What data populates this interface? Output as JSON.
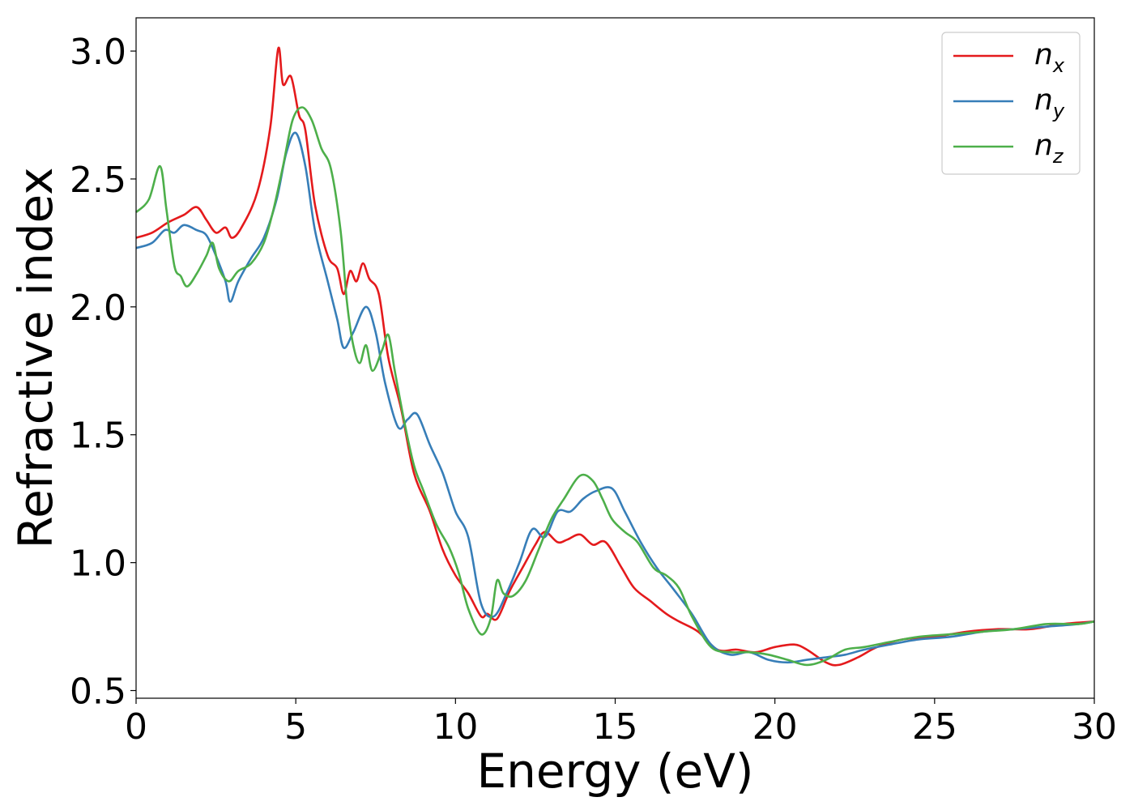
{
  "chart_data": {
    "type": "line",
    "xlabel": "Energy (eV)",
    "ylabel": "Refractive index",
    "xlim": [
      0,
      30
    ],
    "ylim": [
      0.47,
      3.13
    ],
    "xticks": [
      0,
      5,
      10,
      15,
      20,
      25,
      30
    ],
    "yticks": [
      0.5,
      1.0,
      1.5,
      2.0,
      2.5,
      3.0
    ],
    "xtick_labels": [
      "0",
      "5",
      "10",
      "15",
      "20",
      "25",
      "30"
    ],
    "ytick_labels": [
      "0.5",
      "1.0",
      "1.5",
      "2.0",
      "2.5",
      "3.0"
    ],
    "grid": false,
    "legend_position": "top-right",
    "series": [
      {
        "name": "n_x",
        "label_base": "n",
        "label_sub": "x",
        "color": "#e41a1c",
        "points": [
          [
            0,
            2.27
          ],
          [
            0.5,
            2.29
          ],
          [
            1.0,
            2.33
          ],
          [
            1.5,
            2.36
          ],
          [
            1.9,
            2.39
          ],
          [
            2.2,
            2.34
          ],
          [
            2.5,
            2.29
          ],
          [
            2.8,
            2.31
          ],
          [
            3.0,
            2.27
          ],
          [
            3.3,
            2.31
          ],
          [
            3.8,
            2.45
          ],
          [
            4.2,
            2.7
          ],
          [
            4.45,
            3.01
          ],
          [
            4.6,
            2.87
          ],
          [
            4.85,
            2.9
          ],
          [
            5.1,
            2.75
          ],
          [
            5.3,
            2.69
          ],
          [
            5.6,
            2.4
          ],
          [
            6.0,
            2.2
          ],
          [
            6.3,
            2.15
          ],
          [
            6.5,
            2.05
          ],
          [
            6.7,
            2.14
          ],
          [
            6.9,
            2.1
          ],
          [
            7.1,
            2.17
          ],
          [
            7.3,
            2.11
          ],
          [
            7.6,
            2.05
          ],
          [
            7.9,
            1.8
          ],
          [
            8.3,
            1.6
          ],
          [
            8.7,
            1.35
          ],
          [
            9.2,
            1.2
          ],
          [
            9.6,
            1.05
          ],
          [
            10.0,
            0.95
          ],
          [
            10.4,
            0.88
          ],
          [
            10.8,
            0.79
          ],
          [
            11.0,
            0.8
          ],
          [
            11.3,
            0.78
          ],
          [
            11.7,
            0.89
          ],
          [
            12.1,
            0.98
          ],
          [
            12.5,
            1.07
          ],
          [
            12.8,
            1.12
          ],
          [
            13.2,
            1.08
          ],
          [
            13.5,
            1.09
          ],
          [
            13.9,
            1.11
          ],
          [
            14.3,
            1.07
          ],
          [
            14.7,
            1.08
          ],
          [
            15.2,
            0.98
          ],
          [
            15.6,
            0.9
          ],
          [
            16.1,
            0.85
          ],
          [
            16.6,
            0.8
          ],
          [
            17.0,
            0.77
          ],
          [
            17.6,
            0.73
          ],
          [
            18.2,
            0.66
          ],
          [
            18.8,
            0.66
          ],
          [
            19.4,
            0.65
          ],
          [
            20.0,
            0.67
          ],
          [
            20.6,
            0.68
          ],
          [
            21.0,
            0.66
          ],
          [
            21.6,
            0.61
          ],
          [
            22.0,
            0.6
          ],
          [
            22.6,
            0.63
          ],
          [
            23.2,
            0.67
          ],
          [
            24.0,
            0.7
          ],
          [
            25.0,
            0.71
          ],
          [
            26.0,
            0.73
          ],
          [
            27.0,
            0.74
          ],
          [
            28.0,
            0.74
          ],
          [
            29.0,
            0.76
          ],
          [
            30.0,
            0.77
          ]
        ]
      },
      {
        "name": "n_y",
        "label_base": "n",
        "label_sub": "y",
        "color": "#377eb8",
        "points": [
          [
            0,
            2.23
          ],
          [
            0.5,
            2.25
          ],
          [
            0.9,
            2.3
          ],
          [
            1.2,
            2.29
          ],
          [
            1.5,
            2.32
          ],
          [
            1.9,
            2.3
          ],
          [
            2.2,
            2.28
          ],
          [
            2.5,
            2.2
          ],
          [
            2.8,
            2.1
          ],
          [
            2.95,
            2.02
          ],
          [
            3.2,
            2.1
          ],
          [
            3.6,
            2.19
          ],
          [
            4.0,
            2.27
          ],
          [
            4.4,
            2.42
          ],
          [
            4.7,
            2.6
          ],
          [
            5.0,
            2.68
          ],
          [
            5.3,
            2.55
          ],
          [
            5.6,
            2.3
          ],
          [
            6.0,
            2.1
          ],
          [
            6.3,
            1.95
          ],
          [
            6.5,
            1.84
          ],
          [
            6.8,
            1.9
          ],
          [
            7.2,
            2.0
          ],
          [
            7.5,
            1.9
          ],
          [
            7.8,
            1.7
          ],
          [
            8.2,
            1.53
          ],
          [
            8.5,
            1.56
          ],
          [
            8.8,
            1.58
          ],
          [
            9.2,
            1.46
          ],
          [
            9.6,
            1.35
          ],
          [
            10.0,
            1.2
          ],
          [
            10.4,
            1.1
          ],
          [
            10.8,
            0.84
          ],
          [
            11.2,
            0.79
          ],
          [
            11.6,
            0.88
          ],
          [
            12.0,
            1.0
          ],
          [
            12.4,
            1.13
          ],
          [
            12.8,
            1.1
          ],
          [
            13.2,
            1.2
          ],
          [
            13.6,
            1.2
          ],
          [
            14.0,
            1.25
          ],
          [
            14.4,
            1.28
          ],
          [
            14.9,
            1.29
          ],
          [
            15.3,
            1.2
          ],
          [
            15.8,
            1.08
          ],
          [
            16.3,
            0.98
          ],
          [
            16.8,
            0.9
          ],
          [
            17.4,
            0.8
          ],
          [
            18.0,
            0.68
          ],
          [
            18.6,
            0.64
          ],
          [
            19.2,
            0.65
          ],
          [
            19.8,
            0.62
          ],
          [
            20.4,
            0.61
          ],
          [
            21.0,
            0.62
          ],
          [
            21.6,
            0.63
          ],
          [
            22.2,
            0.64
          ],
          [
            22.8,
            0.66
          ],
          [
            23.6,
            0.68
          ],
          [
            24.5,
            0.7
          ],
          [
            25.5,
            0.71
          ],
          [
            26.5,
            0.73
          ],
          [
            27.5,
            0.74
          ],
          [
            28.5,
            0.75
          ],
          [
            29.5,
            0.76
          ],
          [
            30.0,
            0.77
          ]
        ]
      },
      {
        "name": "n_z",
        "label_base": "n",
        "label_sub": "z",
        "color": "#4daf4a",
        "points": [
          [
            0,
            2.37
          ],
          [
            0.4,
            2.42
          ],
          [
            0.75,
            2.55
          ],
          [
            0.95,
            2.38
          ],
          [
            1.2,
            2.16
          ],
          [
            1.4,
            2.12
          ],
          [
            1.6,
            2.08
          ],
          [
            1.9,
            2.13
          ],
          [
            2.2,
            2.2
          ],
          [
            2.4,
            2.25
          ],
          [
            2.6,
            2.15
          ],
          [
            2.9,
            2.1
          ],
          [
            3.2,
            2.14
          ],
          [
            3.6,
            2.17
          ],
          [
            4.0,
            2.25
          ],
          [
            4.3,
            2.38
          ],
          [
            4.6,
            2.55
          ],
          [
            4.9,
            2.73
          ],
          [
            5.2,
            2.78
          ],
          [
            5.5,
            2.73
          ],
          [
            5.8,
            2.62
          ],
          [
            6.1,
            2.54
          ],
          [
            6.4,
            2.3
          ],
          [
            6.6,
            2.02
          ],
          [
            6.8,
            1.85
          ],
          [
            7.0,
            1.78
          ],
          [
            7.2,
            1.85
          ],
          [
            7.4,
            1.75
          ],
          [
            7.7,
            1.83
          ],
          [
            7.9,
            1.89
          ],
          [
            8.1,
            1.75
          ],
          [
            8.4,
            1.55
          ],
          [
            8.7,
            1.38
          ],
          [
            9.0,
            1.28
          ],
          [
            9.4,
            1.15
          ],
          [
            9.8,
            1.06
          ],
          [
            10.1,
            0.96
          ],
          [
            10.4,
            0.82
          ],
          [
            10.8,
            0.72
          ],
          [
            11.1,
            0.78
          ],
          [
            11.3,
            0.93
          ],
          [
            11.5,
            0.88
          ],
          [
            11.8,
            0.87
          ],
          [
            12.2,
            0.93
          ],
          [
            12.6,
            1.05
          ],
          [
            13.0,
            1.17
          ],
          [
            13.4,
            1.25
          ],
          [
            13.9,
            1.34
          ],
          [
            14.3,
            1.32
          ],
          [
            14.6,
            1.25
          ],
          [
            14.9,
            1.17
          ],
          [
            15.3,
            1.12
          ],
          [
            15.7,
            1.08
          ],
          [
            16.2,
            0.98
          ],
          [
            16.6,
            0.95
          ],
          [
            17.0,
            0.9
          ],
          [
            17.4,
            0.79
          ],
          [
            18.0,
            0.67
          ],
          [
            18.6,
            0.65
          ],
          [
            19.2,
            0.65
          ],
          [
            19.8,
            0.64
          ],
          [
            20.4,
            0.62
          ],
          [
            21.0,
            0.6
          ],
          [
            21.6,
            0.62
          ],
          [
            22.2,
            0.66
          ],
          [
            22.8,
            0.67
          ],
          [
            23.6,
            0.69
          ],
          [
            24.5,
            0.71
          ],
          [
            25.5,
            0.72
          ],
          [
            26.5,
            0.73
          ],
          [
            27.5,
            0.74
          ],
          [
            28.5,
            0.76
          ],
          [
            29.5,
            0.76
          ],
          [
            30.0,
            0.77
          ]
        ]
      }
    ]
  }
}
